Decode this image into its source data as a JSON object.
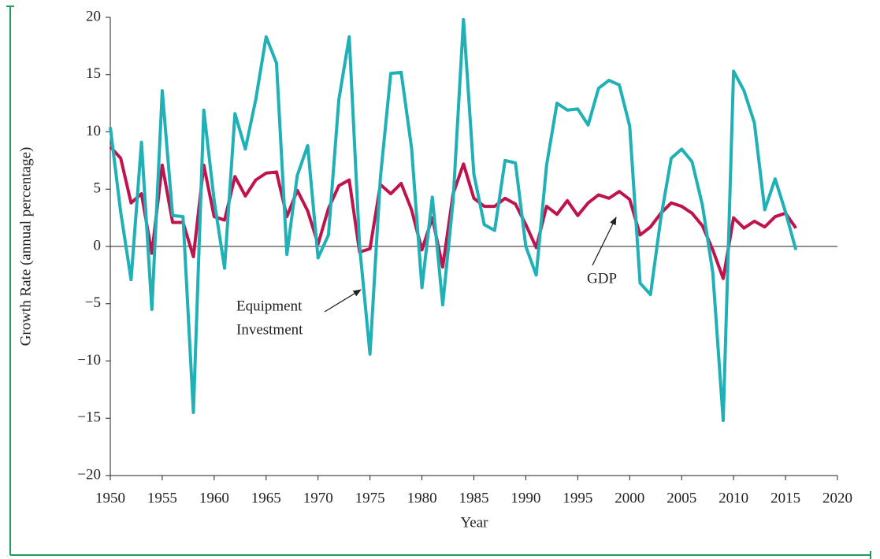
{
  "chart_data": {
    "type": "line",
    "xlabel": "Year",
    "ylabel": "Growth Rate (annual percentage)",
    "x": [
      1950,
      1951,
      1952,
      1953,
      1954,
      1955,
      1956,
      1957,
      1958,
      1959,
      1960,
      1961,
      1962,
      1963,
      1964,
      1965,
      1966,
      1967,
      1968,
      1969,
      1970,
      1971,
      1972,
      1973,
      1974,
      1975,
      1976,
      1977,
      1978,
      1979,
      1980,
      1981,
      1982,
      1983,
      1984,
      1985,
      1986,
      1987,
      1988,
      1989,
      1990,
      1991,
      1992,
      1993,
      1994,
      1995,
      1996,
      1997,
      1998,
      1999,
      2000,
      2001,
      2002,
      2003,
      2004,
      2005,
      2006,
      2007,
      2008,
      2009,
      2010,
      2011,
      2012,
      2013,
      2014,
      2015,
      2016
    ],
    "series": [
      {
        "name": "Equipment Investment",
        "color": "#1fb1b6",
        "values": [
          10.4,
          3,
          -2.9,
          9.1,
          -5.5,
          13.6,
          2.7,
          2.6,
          -14.5,
          11.9,
          4,
          -1.9,
          11.6,
          8.5,
          12.8,
          18.3,
          16,
          -0.7,
          6.2,
          8.8,
          -1,
          1,
          12.8,
          18.3,
          0,
          -9.4,
          6,
          15.1,
          15.2,
          8.6,
          -3.6,
          4.3,
          -5.1,
          4,
          19.8,
          6.3,
          1.9,
          1.4,
          7.5,
          7.3,
          0,
          -2.5,
          7.1,
          12.5,
          11.9,
          12,
          10.6,
          13.8,
          14.5,
          14.1,
          10.5,
          -3.2,
          -4.2,
          2.5,
          7.7,
          8.5,
          7.4,
          3.6,
          -2.3,
          -15.2,
          15.3,
          13.6,
          10.8,
          3.2,
          5.9,
          3,
          -0.3
        ]
      },
      {
        "name": "GDP",
        "color": "#c0134e",
        "values": [
          8.7,
          7.7,
          3.8,
          4.6,
          -0.6,
          7.1,
          2.1,
          2.1,
          -0.9,
          7.1,
          2.6,
          2.3,
          6.1,
          4.4,
          5.8,
          6.4,
          6.5,
          2.6,
          4.9,
          3.1,
          0.2,
          3.3,
          5.3,
          5.8,
          -0.5,
          -0.2,
          5.4,
          4.6,
          5.5,
          3.2,
          -0.3,
          2.5,
          -1.8,
          4.6,
          7.2,
          4.2,
          3.5,
          3.5,
          4.2,
          3.7,
          1.9,
          -0.1,
          3.5,
          2.8,
          4,
          2.7,
          3.8,
          4.5,
          4.2,
          4.8,
          4.1,
          1,
          1.7,
          2.9,
          3.8,
          3.5,
          2.9,
          1.8,
          -0.3,
          -2.8,
          2.5,
          1.6,
          2.2,
          1.7,
          2.6,
          2.9,
          1.6
        ]
      }
    ],
    "annotations": [
      {
        "lines": [
          "Equipment",
          "Investment"
        ]
      },
      {
        "lines": [
          "GDP"
        ]
      }
    ],
    "xlim": [
      1950,
      2020
    ],
    "xticks": [
      1950,
      1955,
      1960,
      1965,
      1970,
      1975,
      1980,
      1985,
      1990,
      1995,
      2000,
      2005,
      2010,
      2015,
      2020
    ],
    "ylim": [
      -20,
      20
    ],
    "yticks": [
      {
        "value": -20,
        "label": "−20"
      },
      {
        "value": -15,
        "label": "−15"
      },
      {
        "value": -10,
        "label": "−10"
      },
      {
        "value": -5,
        "label": "−5"
      },
      0,
      5,
      10,
      15,
      20
    ]
  }
}
